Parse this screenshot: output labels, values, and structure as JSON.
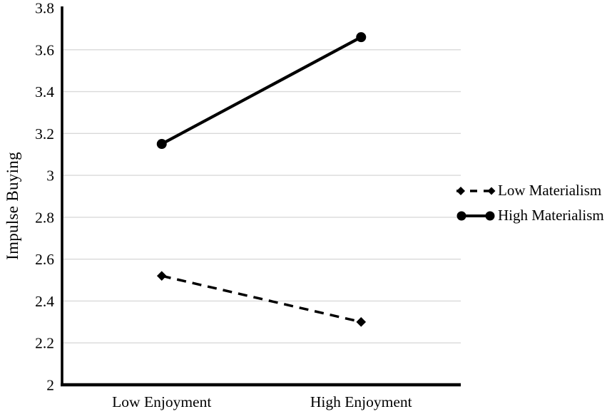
{
  "chart_data": {
    "type": "line",
    "title": "",
    "xlabel": "",
    "ylabel": "Impulse Buying",
    "categories": [
      "Low Enjoyment",
      "High Enjoyment"
    ],
    "series": [
      {
        "name": "Low Materialism",
        "values": [
          2.52,
          2.3
        ],
        "style": "dashed",
        "marker": "diamond"
      },
      {
        "name": "High Materialism",
        "values": [
          3.15,
          3.66
        ],
        "style": "solid",
        "marker": "circle"
      }
    ],
    "ylim": [
      2,
      3.8
    ],
    "yticks": [
      2,
      2.2,
      2.4,
      2.6,
      2.8,
      3,
      3.2,
      3.4,
      3.6,
      3.8
    ],
    "ytick_labels": [
      "2",
      "2.2",
      "2.4",
      "2.6",
      "2.8",
      "3",
      "3.2",
      "3.4",
      "3.6",
      "3.8"
    ],
    "grid": true,
    "legend_position": "right",
    "colors": {
      "line": "#000000",
      "text": "#000000",
      "gridline": "#d9d9d9",
      "background": "#ffffff"
    }
  }
}
